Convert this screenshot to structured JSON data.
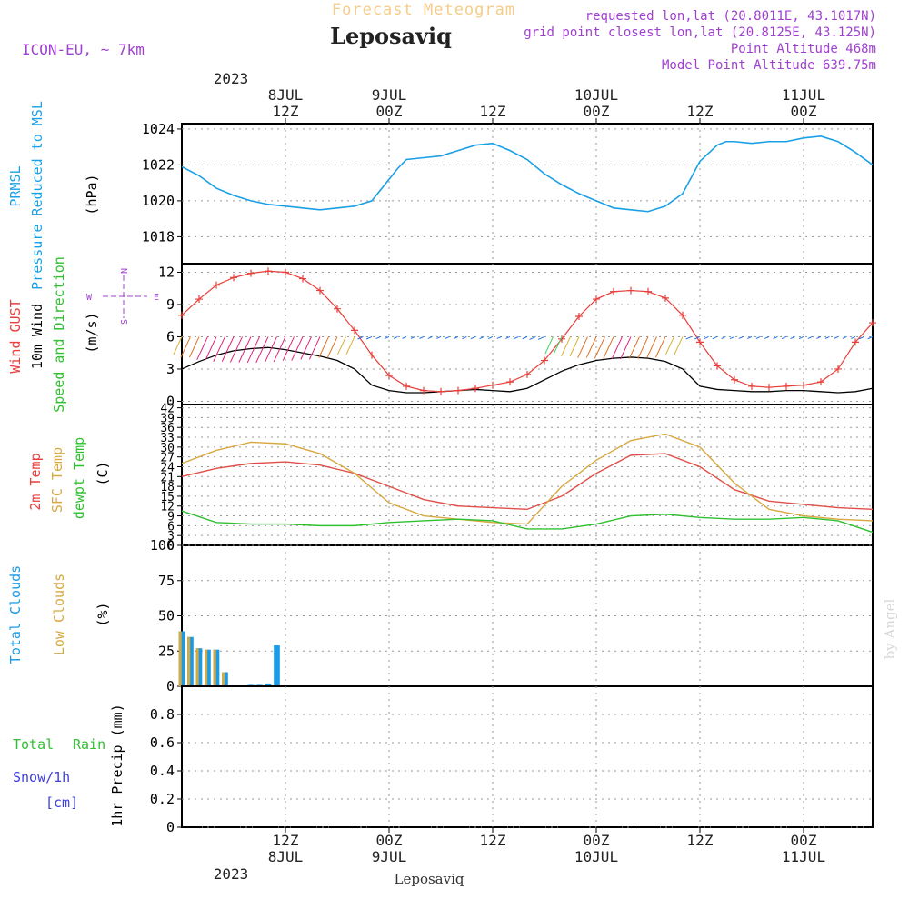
{
  "header": {
    "forecast_label": "Forecast Meteogram",
    "location": "Leposaviq",
    "model": "ICON-EU, ~ 7km",
    "requested": "requested lon,lat (20.8011E, 43.1017N)",
    "grid_point": "grid point closest lon,lat (20.8125E, 43.125N)",
    "point_altitude": "Point Altitude 468m",
    "model_altitude": "Model Point Altitude 639.75m",
    "footer_location": "Leposaviq",
    "watermark": "by Angel"
  },
  "time_axis": {
    "top_year": "2023",
    "bottom_year": "2023",
    "ticks": [
      {
        "t": 12,
        "hour": "12Z",
        "date": "8JUL"
      },
      {
        "t": 24,
        "hour": "00Z",
        "date": "9JUL"
      },
      {
        "t": 36,
        "hour": "12Z",
        "date": ""
      },
      {
        "t": 48,
        "hour": "00Z",
        "date": "10JUL"
      },
      {
        "t": 60,
        "hour": "12Z",
        "date": ""
      },
      {
        "t": 72,
        "hour": "00Z",
        "date": "11JUL"
      }
    ]
  },
  "panel_labels": {
    "pressure": {
      "l1": "PRMSL",
      "l2": "Pressure Reduced to MSL",
      "unit": "(hPa)"
    },
    "wind": {
      "l1": "Wind GUST",
      "l2": "10m Wind",
      "l3": "Speed and Direction",
      "unit": "(m/s)",
      "compass_n": "N",
      "compass_s": "S",
      "compass_w": "W",
      "compass_e": "E"
    },
    "temp": {
      "l1": "2m Temp",
      "l2": "SFC Temp",
      "l3": "dewpt Temp",
      "unit": "(C)"
    },
    "clouds": {
      "l1": "Total Clouds",
      "l2": "Low Clouds",
      "unit": "(%)"
    },
    "precip": {
      "l1": "Total",
      "l1b": "Rain",
      "l2": "Snow/1h",
      "l3": "[cm]",
      "unit": "1hr Precip (mm)"
    }
  },
  "colors": {
    "pressure": "#1aa0e6",
    "gust": "#e8403c",
    "wind": "#000000",
    "t2m": "#e0504a",
    "sfc": "#d8a840",
    "dew": "#30c030",
    "total_clouds": "#1a9be8",
    "low_clouds": "#d8a840",
    "rain": "#30c030",
    "snow": "#4040e0",
    "meta": "#a040d0"
  },
  "chart_data": [
    {
      "type": "line",
      "panel": "pressure",
      "x_unit": "hours from 8JUL 00Z",
      "ylim": [
        1016.5,
        1024.3
      ],
      "yticks": [
        1018,
        1020,
        1022,
        1024
      ],
      "series": [
        {
          "name": "PRMSL",
          "x": [
            0,
            2,
            4,
            6,
            8,
            10,
            12,
            14,
            16,
            18,
            20,
            22,
            24,
            25,
            26,
            28,
            30,
            32,
            34,
            36,
            38,
            40,
            42,
            44,
            46,
            48,
            50,
            52,
            54,
            56,
            58,
            60,
            62,
            63,
            64,
            66,
            68,
            70,
            72,
            74,
            76,
            78,
            80
          ],
          "y": [
            1021.9,
            1021.4,
            1020.7,
            1020.3,
            1020,
            1019.8,
            1019.7,
            1019.6,
            1019.5,
            1019.6,
            1019.7,
            1020,
            1021.2,
            1021.8,
            1022.3,
            1022.4,
            1022.5,
            1022.8,
            1023.1,
            1023.2,
            1022.8,
            1022.3,
            1021.5,
            1020.9,
            1020.4,
            1020,
            1019.6,
            1019.5,
            1019.4,
            1019.7,
            1020.4,
            1022.2,
            1023.1,
            1023.3,
            1023.3,
            1023.2,
            1023.3,
            1023.3,
            1023.5,
            1023.6,
            1023.3,
            1022.7,
            1022
          ]
        }
      ]
    },
    {
      "type": "line",
      "panel": "wind",
      "ylim": [
        -0.3,
        12.8
      ],
      "yticks": [
        0,
        3,
        6,
        9,
        12
      ],
      "series": [
        {
          "name": "Wind GUST",
          "x": [
            0,
            2,
            4,
            6,
            8,
            10,
            12,
            14,
            16,
            18,
            20,
            22,
            24,
            26,
            28,
            30,
            32,
            34,
            36,
            38,
            40,
            42,
            44,
            46,
            48,
            50,
            52,
            54,
            56,
            58,
            60,
            62,
            64,
            66,
            68,
            70,
            72,
            74,
            76,
            78,
            80
          ],
          "y": [
            8,
            9.5,
            10.8,
            11.5,
            11.9,
            12.1,
            12,
            11.4,
            10.3,
            8.6,
            6.6,
            4.3,
            2.4,
            1.4,
            1,
            0.9,
            1,
            1.2,
            1.5,
            1.8,
            2.5,
            3.8,
            5.8,
            7.9,
            9.5,
            10.2,
            10.3,
            10.2,
            9.6,
            8,
            5.5,
            3.3,
            2,
            1.4,
            1.3,
            1.4,
            1.5,
            1.8,
            3,
            5.5,
            7.3
          ]
        },
        {
          "name": "10m Wind",
          "x": [
            0,
            2,
            4,
            6,
            8,
            10,
            12,
            14,
            16,
            18,
            20,
            22,
            24,
            26,
            28,
            30,
            32,
            34,
            36,
            38,
            40,
            42,
            44,
            46,
            48,
            50,
            52,
            54,
            56,
            58,
            60,
            62,
            64,
            66,
            68,
            70,
            72,
            74,
            76,
            78,
            80
          ],
          "y": [
            3,
            3.7,
            4.3,
            4.7,
            4.9,
            5,
            4.8,
            4.5,
            4.2,
            3.8,
            3,
            1.5,
            1,
            0.8,
            0.8,
            0.9,
            1,
            1.1,
            1,
            0.9,
            1.2,
            2,
            2.8,
            3.4,
            3.8,
            4,
            4.1,
            4,
            3.7,
            3,
            1.4,
            1.1,
            1,
            0.9,
            0.9,
            1,
            1,
            0.9,
            0.8,
            0.9,
            1.2
          ]
        }
      ]
    },
    {
      "type": "line",
      "panel": "temperature",
      "ylim": [
        0,
        43
      ],
      "yticks": [
        0,
        3,
        6,
        9,
        12,
        15,
        18,
        21,
        24,
        27,
        30,
        33,
        36,
        39,
        42
      ],
      "series": [
        {
          "name": "2m Temp",
          "x": [
            0,
            4,
            8,
            12,
            16,
            20,
            24,
            28,
            32,
            36,
            40,
            44,
            48,
            52,
            56,
            60,
            64,
            68,
            72,
            76,
            80
          ],
          "y": [
            21,
            23.5,
            25,
            25.5,
            24.5,
            22,
            18,
            14,
            12,
            11.5,
            11,
            15,
            22,
            27.5,
            28,
            24,
            17,
            13.5,
            12.5,
            11.5,
            11
          ]
        },
        {
          "name": "SFC Temp",
          "x": [
            0,
            4,
            8,
            12,
            16,
            20,
            24,
            28,
            32,
            36,
            40,
            44,
            48,
            52,
            56,
            60,
            64,
            68,
            72,
            76,
            80
          ],
          "y": [
            25,
            29,
            31.5,
            31,
            28,
            22,
            13,
            9,
            8,
            7,
            6.5,
            18,
            26,
            32,
            34,
            30,
            19,
            11,
            9,
            8,
            7.5
          ]
        },
        {
          "name": "dewpt Temp",
          "x": [
            0,
            4,
            8,
            12,
            16,
            20,
            24,
            28,
            32,
            36,
            40,
            44,
            48,
            52,
            56,
            60,
            64,
            68,
            72,
            76,
            80
          ],
          "y": [
            10.5,
            7,
            6.5,
            6.5,
            6,
            6,
            7,
            7.5,
            8,
            7.5,
            5,
            5,
            6.5,
            9,
            9.5,
            8.5,
            8,
            8,
            8.5,
            7.5,
            4
          ]
        }
      ]
    },
    {
      "type": "bar",
      "panel": "clouds",
      "ylim": [
        0,
        100
      ],
      "yticks": [
        0,
        25,
        50,
        75,
        100
      ],
      "series": [
        {
          "name": "Total Clouds",
          "x": [
            0,
            1,
            2,
            3,
            4,
            5,
            6,
            7,
            8,
            9,
            10,
            11,
            12,
            13,
            14,
            15,
            16,
            17,
            18,
            19,
            20,
            21,
            22,
            23,
            24,
            25,
            26,
            27,
            28,
            29,
            30,
            31,
            32,
            33,
            34,
            35,
            36,
            37,
            38,
            39,
            40,
            41,
            42,
            43,
            44,
            45,
            46,
            47,
            48,
            49,
            50,
            51,
            52,
            53,
            54,
            55,
            56,
            57,
            58,
            59,
            60,
            61,
            62,
            63,
            64,
            65,
            66,
            67,
            68,
            69,
            70,
            71,
            72,
            73,
            74,
            75,
            76,
            77,
            78,
            79,
            80
          ],
          "y": [
            39,
            35,
            27,
            26,
            26,
            10,
            0,
            0,
            1,
            1,
            2,
            29,
            0,
            0,
            0,
            0,
            0,
            0,
            0,
            0,
            0,
            0,
            0,
            0,
            0,
            0,
            0,
            0,
            0,
            0,
            0,
            0,
            0,
            0,
            0,
            0,
            0,
            0,
            0,
            0,
            0,
            0,
            0,
            0,
            0,
            0,
            0,
            0,
            0,
            0,
            0,
            0,
            0,
            0,
            0,
            0,
            0,
            0,
            0,
            0,
            0,
            0,
            0,
            0,
            0,
            0,
            0,
            0,
            0,
            0,
            0,
            0,
            0,
            0,
            0,
            0,
            0,
            0,
            0,
            0,
            0
          ]
        },
        {
          "name": "Low Clouds",
          "x": [
            0,
            1,
            2,
            3,
            4,
            5,
            6,
            7,
            8,
            9,
            10,
            11,
            12,
            13,
            14,
            15,
            16,
            17,
            18,
            19,
            20,
            21,
            22,
            23,
            24,
            25,
            26,
            27,
            28,
            29,
            30,
            31,
            32,
            33,
            34,
            35,
            36,
            37,
            38,
            39,
            40,
            41,
            42,
            43,
            44,
            45,
            46,
            47,
            48,
            49,
            50,
            51,
            52,
            53,
            54,
            55,
            56,
            57,
            58,
            59,
            60,
            61,
            62,
            63,
            64,
            65,
            66,
            67,
            68,
            69,
            70,
            71,
            72,
            73,
            74,
            75,
            76,
            77,
            78,
            79,
            80
          ],
          "y": [
            39,
            35,
            27,
            26,
            26,
            10,
            0,
            0,
            0,
            0,
            0,
            0,
            0,
            0,
            0,
            0,
            0,
            0,
            0,
            0,
            0,
            0,
            0,
            0,
            0,
            0,
            0,
            0,
            0,
            0,
            0,
            0,
            0,
            0,
            0,
            0,
            0,
            0,
            0,
            0,
            0,
            0,
            0,
            0,
            0,
            0,
            0,
            0,
            0,
            0,
            0,
            0,
            0,
            0,
            0,
            0,
            0,
            0,
            0,
            0,
            0,
            0,
            0,
            0,
            0,
            0,
            0,
            0,
            0,
            0,
            0,
            0,
            0,
            0,
            0,
            0,
            0,
            0,
            0,
            0,
            0
          ]
        }
      ]
    },
    {
      "type": "bar",
      "panel": "precip",
      "ylim": [
        0,
        1
      ],
      "yticks": [
        0,
        0.2,
        0.4,
        0.6,
        0.8
      ],
      "series": [
        {
          "name": "Rain",
          "x": [],
          "y": []
        },
        {
          "name": "Snow",
          "x": [],
          "y": []
        }
      ]
    }
  ]
}
